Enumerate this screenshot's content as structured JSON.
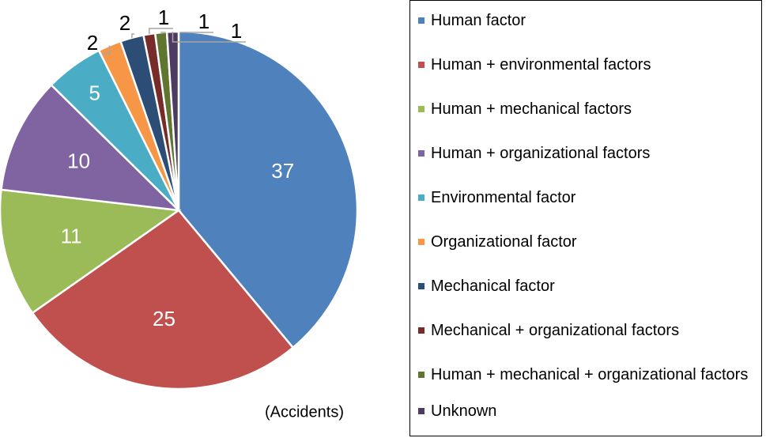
{
  "chart_data": {
    "type": "pie",
    "categories": [
      "Human factor",
      "Human + environmental factors",
      "Human + mechanical factors",
      "Human + organizational factors",
      "Environmental factor",
      "Organizational factor",
      "Mechanical factor",
      "Mechanical + organizational factors",
      "Human + mechanical + organizational factors",
      "Unknown"
    ],
    "values": [
      37,
      25,
      11,
      10,
      5,
      2,
      2,
      1,
      1,
      1
    ],
    "colors": [
      "#4f81bd",
      "#c0504d",
      "#9bbb59",
      "#8064a2",
      "#4bacc6",
      "#f79646",
      "#2c4d75",
      "#772c2a",
      "#5f7530",
      "#4d3b62"
    ],
    "annotation": "(Accidents)",
    "legend": "right"
  }
}
